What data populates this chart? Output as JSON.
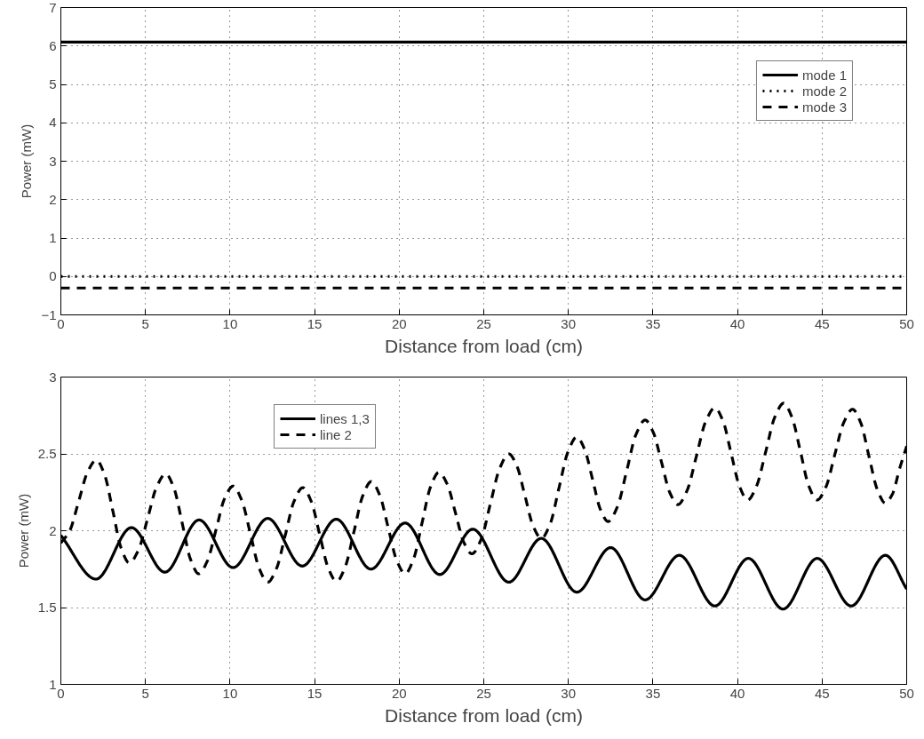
{
  "chart_data": [
    {
      "type": "line",
      "xlabel": "Distance from load (cm)",
      "ylabel": "Power (mW)",
      "x": [
        0,
        50
      ],
      "series": [
        {
          "name": "mode 1",
          "color": "#000000",
          "line_style": "solid",
          "values": [
            6.1,
            6.1
          ]
        },
        {
          "name": "mode 2",
          "color": "#000000",
          "line_style": "dotted",
          "values": [
            0.0,
            0.0
          ]
        },
        {
          "name": "mode 3",
          "color": "#000000",
          "line_style": "dashed",
          "values": [
            -0.3,
            -0.3
          ]
        }
      ],
      "xlim": [
        0,
        50
      ],
      "xticks": [
        0,
        5,
        10,
        15,
        20,
        25,
        30,
        35,
        40,
        45,
        50
      ],
      "ylim": [
        -1,
        7
      ],
      "yticks": [
        {
          "value": -1,
          "label": "−1"
        },
        0,
        1,
        2,
        3,
        4,
        5,
        6,
        7
      ],
      "grid": true,
      "legend": "top right",
      "marker": "none"
    },
    {
      "type": "line",
      "xlabel": "Distance from load (cm)",
      "ylabel": "Power (mW)",
      "series": [
        {
          "name": "lines 1,3",
          "color": "#000000",
          "line_style": "solid",
          "x": [
            0,
            2.08,
            4.17,
            6.15,
            8.17,
            10.18,
            12.23,
            14.27,
            16.28,
            18.33,
            20.35,
            22.4,
            24.35,
            26.48,
            28.4,
            30.5,
            32.5,
            34.54,
            36.56,
            38.66,
            40.64,
            42.69,
            44.71,
            46.72,
            48.74,
            50
          ],
          "values": [
            1.97,
            1.685,
            2.02,
            1.73,
            2.07,
            1.76,
            2.08,
            1.77,
            2.075,
            1.75,
            2.05,
            1.715,
            2.01,
            1.665,
            1.95,
            1.6,
            1.89,
            1.55,
            1.84,
            1.51,
            1.82,
            1.49,
            1.82,
            1.51,
            1.84,
            1.62
          ]
        },
        {
          "name": "line 2",
          "color": "#000000",
          "line_style": "dashed",
          "x": [
            0,
            0.525,
            1.05,
            1.575,
            2.1,
            2.59,
            3.08,
            3.56,
            4.05,
            4.59,
            5.13,
            5.66,
            6.2,
            6.69,
            7.18,
            7.66,
            8.15,
            8.66,
            9.17,
            9.67,
            10.18,
            10.69,
            11.21,
            11.72,
            12.23,
            12.75,
            13.27,
            13.78,
            14.3,
            14.8,
            15.3,
            15.8,
            16.3,
            16.81,
            17.33,
            17.84,
            18.35,
            18.85,
            19.35,
            19.85,
            20.35,
            20.85,
            21.35,
            21.85,
            22.35,
            22.84,
            23.33,
            23.81,
            24.3,
            24.85,
            25.39,
            25.94,
            26.48,
            26.96,
            27.44,
            27.92,
            28.4,
            28.93,
            29.45,
            29.98,
            30.5,
            30.96,
            31.43,
            31.89,
            32.35,
            32.9,
            33.45,
            33.99,
            34.54,
            35.02,
            35.51,
            35.99,
            36.47,
            37.02,
            37.57,
            38.11,
            38.66,
            39.15,
            39.63,
            40.12,
            40.6,
            41.13,
            41.67,
            42.2,
            42.73,
            43.22,
            43.72,
            44.21,
            44.7,
            45.23,
            45.75,
            46.28,
            46.8,
            47.29,
            47.77,
            48.26,
            48.74,
            49.16,
            49.58,
            50
          ],
          "values": [
            1.92,
            2.0,
            2.19,
            2.381,
            2.46,
            2.362,
            2.125,
            1.888,
            1.79,
            1.875,
            2.08,
            2.285,
            2.37,
            2.275,
            2.045,
            1.815,
            1.72,
            1.803,
            2.005,
            2.207,
            2.29,
            2.199,
            1.978,
            1.756,
            1.665,
            1.755,
            1.973,
            2.19,
            2.28,
            2.191,
            1.975,
            1.759,
            1.67,
            1.765,
            1.995,
            2.225,
            2.32,
            2.232,
            2.02,
            1.808,
            1.72,
            1.816,
            2.05,
            2.284,
            2.38,
            2.303,
            2.115,
            1.927,
            1.85,
            1.945,
            2.175,
            2.405,
            2.5,
            2.42,
            2.225,
            2.03,
            1.95,
            2.046,
            2.28,
            2.514,
            2.61,
            2.53,
            2.335,
            2.14,
            2.06,
            2.156,
            2.39,
            2.624,
            2.72,
            2.64,
            2.445,
            2.25,
            2.17,
            2.262,
            2.485,
            2.708,
            2.8,
            2.712,
            2.5,
            2.288,
            2.2,
            2.292,
            2.515,
            2.738,
            2.83,
            2.738,
            2.515,
            2.292,
            2.2,
            2.286,
            2.495,
            2.704,
            2.79,
            2.701,
            2.485,
            2.269,
            2.18,
            2.239,
            2.403,
            2.55
          ]
        }
      ],
      "xlim": [
        0,
        50
      ],
      "xticks": [
        0,
        5,
        10,
        15,
        20,
        25,
        30,
        35,
        40,
        45,
        50
      ],
      "ylim": [
        1,
        3
      ],
      "yticks": [
        1,
        1.5,
        2,
        2.5,
        3
      ],
      "grid": true,
      "legend": "top left",
      "marker": "none"
    }
  ]
}
